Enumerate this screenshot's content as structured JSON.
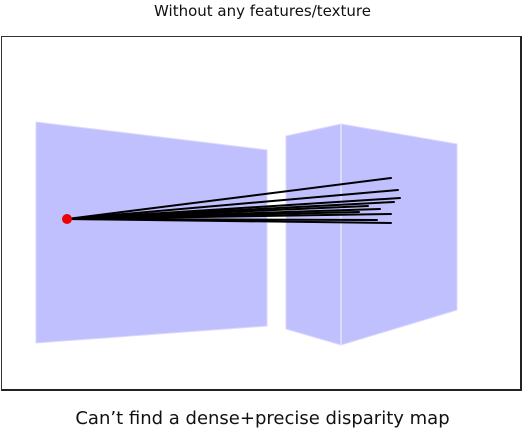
{
  "header": {
    "title": "Without any features/texture"
  },
  "footer": {
    "caption": "Can’t find a dense+precise disparity map"
  },
  "colors": {
    "plane_fill": "#c0c0fe",
    "plane_edge": "#e8e8ff",
    "ray": "#000000",
    "point": "#ee0000",
    "frame": "#222222"
  }
}
